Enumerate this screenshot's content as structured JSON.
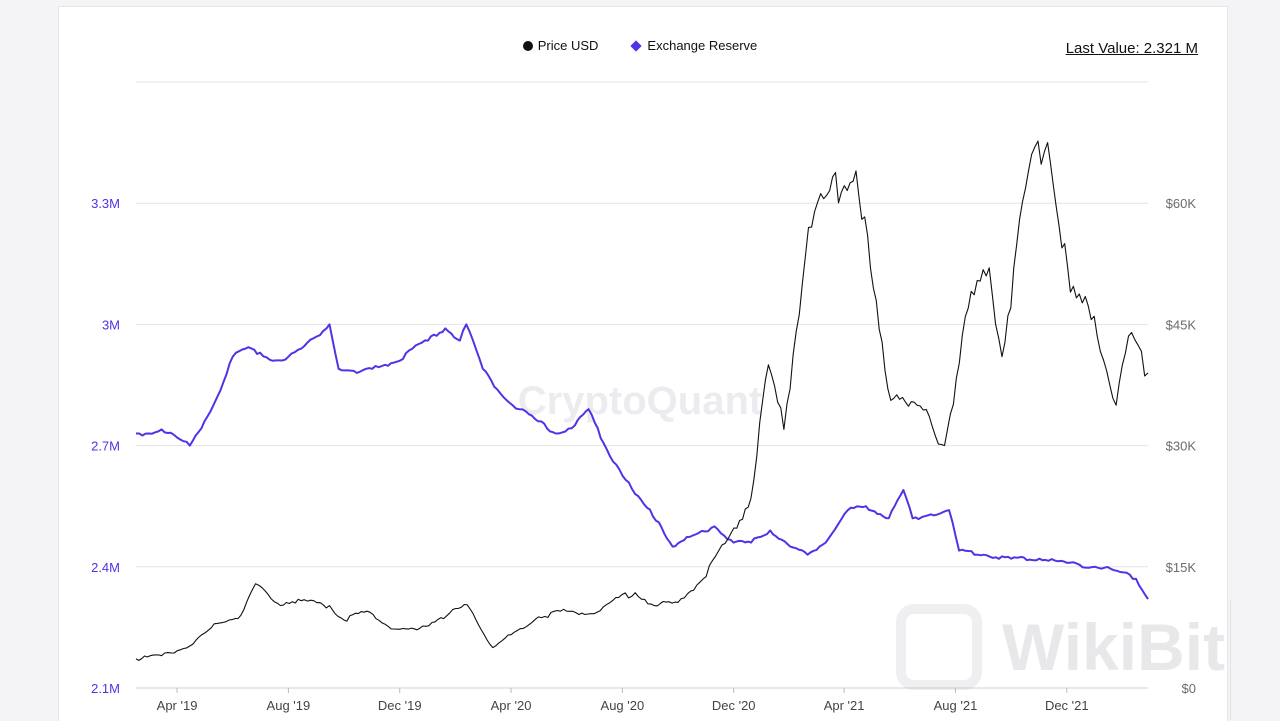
{
  "legend": {
    "price_label": "Price USD",
    "reserve_label": "Exchange Reserve"
  },
  "last_value": "Last Value: 2.321 M",
  "watermark": "CryptoQuant",
  "wikibit_watermark": "WikiBit",
  "colors": {
    "price": "#111111",
    "reserve": "#5232e6",
    "grid": "#e4e4e8"
  },
  "chart_data": {
    "type": "line",
    "title": "",
    "x_ticks": [
      "Apr '19",
      "Aug '19",
      "Dec '19",
      "Apr '20",
      "Aug '20",
      "Dec '20",
      "Apr '21",
      "Aug '21",
      "Dec '21"
    ],
    "x_range": [
      "2019-02-15",
      "2022-02-28"
    ],
    "y_left": {
      "ticks": [
        "2.1M",
        "2.4M",
        "2.7M",
        "3M",
        "3.3M"
      ],
      "range": [
        2.1,
        3.6
      ]
    },
    "y_right": {
      "ticks": [
        "$0",
        "$15K",
        "$30K",
        "$45K",
        "$60K"
      ],
      "range": [
        0,
        75000
      ]
    },
    "legend_position": "top-center",
    "grid": true,
    "series": [
      {
        "name": "Exchange Reserve",
        "axis": "left",
        "unit": "M",
        "points": [
          [
            "2019-02-15",
            2.73
          ],
          [
            "2019-03-01",
            2.73
          ],
          [
            "2019-03-15",
            2.74
          ],
          [
            "2019-04-01",
            2.72
          ],
          [
            "2019-04-15",
            2.7
          ],
          [
            "2019-05-01",
            2.76
          ],
          [
            "2019-05-15",
            2.82
          ],
          [
            "2019-06-01",
            2.92
          ],
          [
            "2019-06-15",
            2.94
          ],
          [
            "2019-07-01",
            2.93
          ],
          [
            "2019-07-15",
            2.91
          ],
          [
            "2019-08-01",
            2.92
          ],
          [
            "2019-08-15",
            2.94
          ],
          [
            "2019-09-01",
            2.97
          ],
          [
            "2019-09-15",
            3.0
          ],
          [
            "2019-09-25",
            2.89
          ],
          [
            "2019-10-15",
            2.88
          ],
          [
            "2019-11-01",
            2.89
          ],
          [
            "2019-11-15",
            2.9
          ],
          [
            "2019-12-01",
            2.91
          ],
          [
            "2019-12-15",
            2.94
          ],
          [
            "2020-01-01",
            2.96
          ],
          [
            "2020-01-20",
            2.99
          ],
          [
            "2020-02-05",
            2.96
          ],
          [
            "2020-02-12",
            3.0
          ],
          [
            "2020-03-01",
            2.89
          ],
          [
            "2020-03-20",
            2.83
          ],
          [
            "2020-04-10",
            2.79
          ],
          [
            "2020-05-01",
            2.76
          ],
          [
            "2020-05-20",
            2.73
          ],
          [
            "2020-06-10",
            2.75
          ],
          [
            "2020-06-25",
            2.79
          ],
          [
            "2020-07-15",
            2.69
          ],
          [
            "2020-08-15",
            2.58
          ],
          [
            "2020-09-10",
            2.51
          ],
          [
            "2020-09-25",
            2.45
          ],
          [
            "2020-10-20",
            2.48
          ],
          [
            "2020-11-10",
            2.5
          ],
          [
            "2020-12-01",
            2.46
          ],
          [
            "2020-12-20",
            2.46
          ],
          [
            "2021-01-10",
            2.49
          ],
          [
            "2021-02-01",
            2.45
          ],
          [
            "2021-02-20",
            2.43
          ],
          [
            "2021-03-15",
            2.47
          ],
          [
            "2021-04-05",
            2.54
          ],
          [
            "2021-04-25",
            2.55
          ],
          [
            "2021-05-20",
            2.52
          ],
          [
            "2021-06-05",
            2.59
          ],
          [
            "2021-06-15",
            2.52
          ],
          [
            "2021-07-05",
            2.53
          ],
          [
            "2021-07-25",
            2.54
          ],
          [
            "2021-08-05",
            2.44
          ],
          [
            "2021-09-01",
            2.43
          ],
          [
            "2021-10-01",
            2.42
          ],
          [
            "2021-11-01",
            2.42
          ],
          [
            "2021-12-01",
            2.41
          ],
          [
            "2022-01-01",
            2.4
          ],
          [
            "2022-01-25",
            2.39
          ],
          [
            "2022-02-15",
            2.37
          ],
          [
            "2022-02-28",
            2.32
          ]
        ]
      },
      {
        "name": "Price USD",
        "axis": "right",
        "unit": "USD",
        "points": [
          [
            "2019-02-15",
            3600
          ],
          [
            "2019-03-15",
            4000
          ],
          [
            "2019-04-15",
            5200
          ],
          [
            "2019-05-15",
            8000
          ],
          [
            "2019-06-10",
            9000
          ],
          [
            "2019-06-26",
            12900
          ],
          [
            "2019-07-20",
            10500
          ],
          [
            "2019-08-15",
            10800
          ],
          [
            "2019-09-15",
            10200
          ],
          [
            "2019-10-01",
            8400
          ],
          [
            "2019-10-26",
            9500
          ],
          [
            "2019-11-25",
            7300
          ],
          [
            "2019-12-20",
            7200
          ],
          [
            "2020-01-15",
            8700
          ],
          [
            "2020-02-13",
            10300
          ],
          [
            "2020-03-12",
            5000
          ],
          [
            "2020-04-01",
            6600
          ],
          [
            "2020-05-01",
            8800
          ],
          [
            "2020-06-01",
            9500
          ],
          [
            "2020-07-01",
            9200
          ],
          [
            "2020-07-28",
            11200
          ],
          [
            "2020-08-15",
            11800
          ],
          [
            "2020-09-05",
            10200
          ],
          [
            "2020-10-01",
            10600
          ],
          [
            "2020-10-25",
            13100
          ],
          [
            "2020-11-25",
            18500
          ],
          [
            "2020-12-20",
            23500
          ],
          [
            "2021-01-08",
            40000
          ],
          [
            "2021-01-25",
            32000
          ],
          [
            "2021-02-21",
            57000
          ],
          [
            "2021-03-13",
            61000
          ],
          [
            "2021-04-14",
            64000
          ],
          [
            "2021-05-19",
            37000
          ],
          [
            "2021-06-20",
            35000
          ],
          [
            "2021-07-20",
            30000
          ],
          [
            "2021-08-15",
            47000
          ],
          [
            "2021-09-07",
            52000
          ],
          [
            "2021-09-21",
            41000
          ],
          [
            "2021-10-20",
            64000
          ],
          [
            "2021-11-10",
            67500
          ],
          [
            "2021-12-05",
            49000
          ],
          [
            "2021-12-31",
            46000
          ],
          [
            "2022-01-24",
            35000
          ],
          [
            "2022-02-10",
            44000
          ],
          [
            "2022-02-28",
            39000
          ]
        ]
      }
    ]
  }
}
